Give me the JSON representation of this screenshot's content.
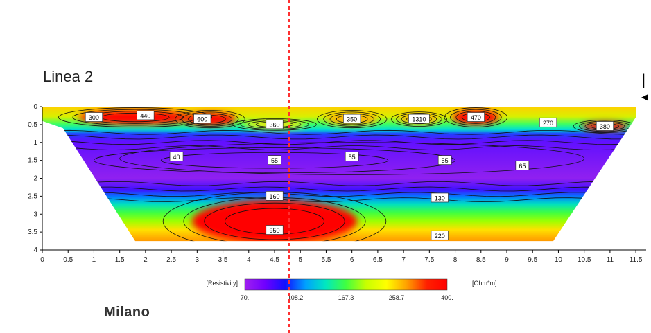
{
  "title": "Linea 2",
  "bottom_text": "Milano",
  "edge_marker": "|◂",
  "chart_data": {
    "type": "heatmap",
    "title": "Linea 2",
    "xlabel": "",
    "ylabel": "",
    "xlim": [
      0,
      11.7
    ],
    "ylim": [
      4,
      0
    ],
    "x_ticks": [
      "0",
      "0.5",
      "1",
      "1.5",
      "2",
      "2.5",
      "3",
      "3.5",
      "4",
      "4.5",
      "5",
      "5.5",
      "6",
      "6.5",
      "7",
      "7.5",
      "8",
      "8.5",
      "9",
      "9.5",
      "10",
      "10.5",
      "11",
      "11.5"
    ],
    "y_ticks": [
      "0",
      "0.5",
      "1",
      "1.5",
      "2",
      "2.5",
      "3",
      "3.5",
      "4"
    ],
    "grid": false,
    "section_boundary": [
      [
        0,
        0
      ],
      [
        11.5,
        0
      ],
      [
        11.5,
        0.3
      ],
      [
        9.9,
        3.75
      ],
      [
        1.8,
        3.75
      ],
      [
        0.4,
        0.6
      ],
      [
        0,
        0.4
      ]
    ],
    "contour_labels": [
      {
        "x": 1.0,
        "y": 0.3,
        "label": "300"
      },
      {
        "x": 2.0,
        "y": 0.25,
        "label": "440"
      },
      {
        "x": 3.1,
        "y": 0.35,
        "label": "600"
      },
      {
        "x": 4.5,
        "y": 0.5,
        "label": "360"
      },
      {
        "x": 6.0,
        "y": 0.35,
        "label": "350"
      },
      {
        "x": 7.3,
        "y": 0.35,
        "label": "1310"
      },
      {
        "x": 8.4,
        "y": 0.3,
        "label": "470"
      },
      {
        "x": 9.8,
        "y": 0.45,
        "label": "270"
      },
      {
        "x": 10.9,
        "y": 0.55,
        "label": "380"
      },
      {
        "x": 2.6,
        "y": 1.4,
        "label": "40"
      },
      {
        "x": 4.5,
        "y": 1.5,
        "label": "55"
      },
      {
        "x": 6.0,
        "y": 1.4,
        "label": "55"
      },
      {
        "x": 7.8,
        "y": 1.5,
        "label": "55"
      },
      {
        "x": 9.3,
        "y": 1.65,
        "label": "65"
      },
      {
        "x": 4.5,
        "y": 2.5,
        "label": "160"
      },
      {
        "x": 7.7,
        "y": 2.55,
        "label": "130"
      },
      {
        "x": 4.5,
        "y": 3.45,
        "label": "950"
      },
      {
        "x": 7.7,
        "y": 3.6,
        "label": "220"
      }
    ],
    "blobs": [
      {
        "x": 1.8,
        "y": 0.3,
        "rx": 1.1,
        "ry": 0.2,
        "value": 400
      },
      {
        "x": 3.25,
        "y": 0.35,
        "rx": 0.5,
        "ry": 0.18,
        "value": 400
      },
      {
        "x": 8.4,
        "y": 0.3,
        "rx": 0.45,
        "ry": 0.2,
        "value": 400
      },
      {
        "x": 10.9,
        "y": 0.55,
        "rx": 0.45,
        "ry": 0.13,
        "value": 400
      },
      {
        "x": 4.5,
        "y": 3.2,
        "rx": 1.6,
        "ry": 0.6,
        "value": 400
      },
      {
        "x": 6.0,
        "y": 0.35,
        "rx": 0.5,
        "ry": 0.18,
        "value": 300
      },
      {
        "x": 7.3,
        "y": 0.35,
        "rx": 0.4,
        "ry": 0.15,
        "value": 300
      },
      {
        "x": 4.5,
        "y": 0.5,
        "rx": 0.6,
        "ry": 0.12,
        "value": 250
      }
    ],
    "colorbar": {
      "label": "[Resistivity]",
      "unit": "[Ohm*m]",
      "ticks": [
        "70.",
        "108.2",
        "167.3",
        "258.7",
        "400."
      ],
      "colors": [
        "#a020f0",
        "#7000ff",
        "#1010ff",
        "#00a0ff",
        "#00e8c0",
        "#40ff40",
        "#c8ff00",
        "#ffff00",
        "#ffa000",
        "#ff2000",
        "#ff0000"
      ]
    },
    "marker_line_color": "#ff3030"
  }
}
